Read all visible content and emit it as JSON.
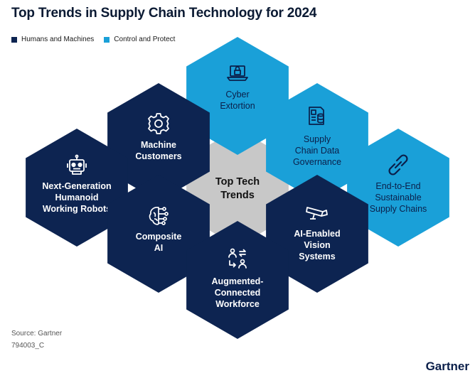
{
  "title": "Top Trends in Supply Chain Technology for 2024",
  "legend": [
    {
      "label": "Humans and Machines",
      "color": "#0d2451"
    },
    {
      "label": "Control and Protect",
      "color": "#1aa0d8"
    }
  ],
  "colors": {
    "dark": "#0d2451",
    "light": "#1aa0d8",
    "center": "#c8c8c8",
    "title": "#0b1a33"
  },
  "center": {
    "lines": [
      "Top Tech",
      "Trends"
    ]
  },
  "hexes": [
    {
      "id": "cyber-extortion",
      "group": "control",
      "icon": "laptop-lock-icon",
      "lines": [
        "Cyber",
        "Extortion"
      ]
    },
    {
      "id": "machine-customers",
      "group": "humans",
      "icon": "gear-icon",
      "lines": [
        "Machine",
        "Customers"
      ]
    },
    {
      "id": "supply-chain-data-governance",
      "group": "control",
      "icon": "document-database-icon",
      "lines": [
        "Supply",
        "Chain Data",
        "Governance"
      ]
    },
    {
      "id": "next-generation-humanoid-working-robots",
      "group": "humans",
      "icon": "robot-icon",
      "lines": [
        "Next-Generation",
        "Humanoid",
        "Working Robots"
      ]
    },
    {
      "id": "end-to-end-sustainable-supply-chains",
      "group": "control",
      "icon": "chain-link-icon",
      "lines": [
        "End-to-End",
        "Sustainable",
        "Supply Chains"
      ]
    },
    {
      "id": "composite-ai",
      "group": "humans",
      "icon": "brain-circuit-icon",
      "lines": [
        "Composite",
        "AI"
      ]
    },
    {
      "id": "ai-enabled-vision-systems",
      "group": "humans",
      "icon": "camera-icon",
      "lines": [
        "AI-Enabled",
        "Vision",
        "Systems"
      ]
    },
    {
      "id": "augmented-connected-workforce",
      "group": "humans",
      "icon": "people-exchange-icon",
      "lines": [
        "Augmented-",
        "Connected",
        "Workforce"
      ]
    }
  ],
  "footer": {
    "source": "Source: Gartner",
    "doc_id": "794003_C",
    "brand": "Gartner"
  }
}
